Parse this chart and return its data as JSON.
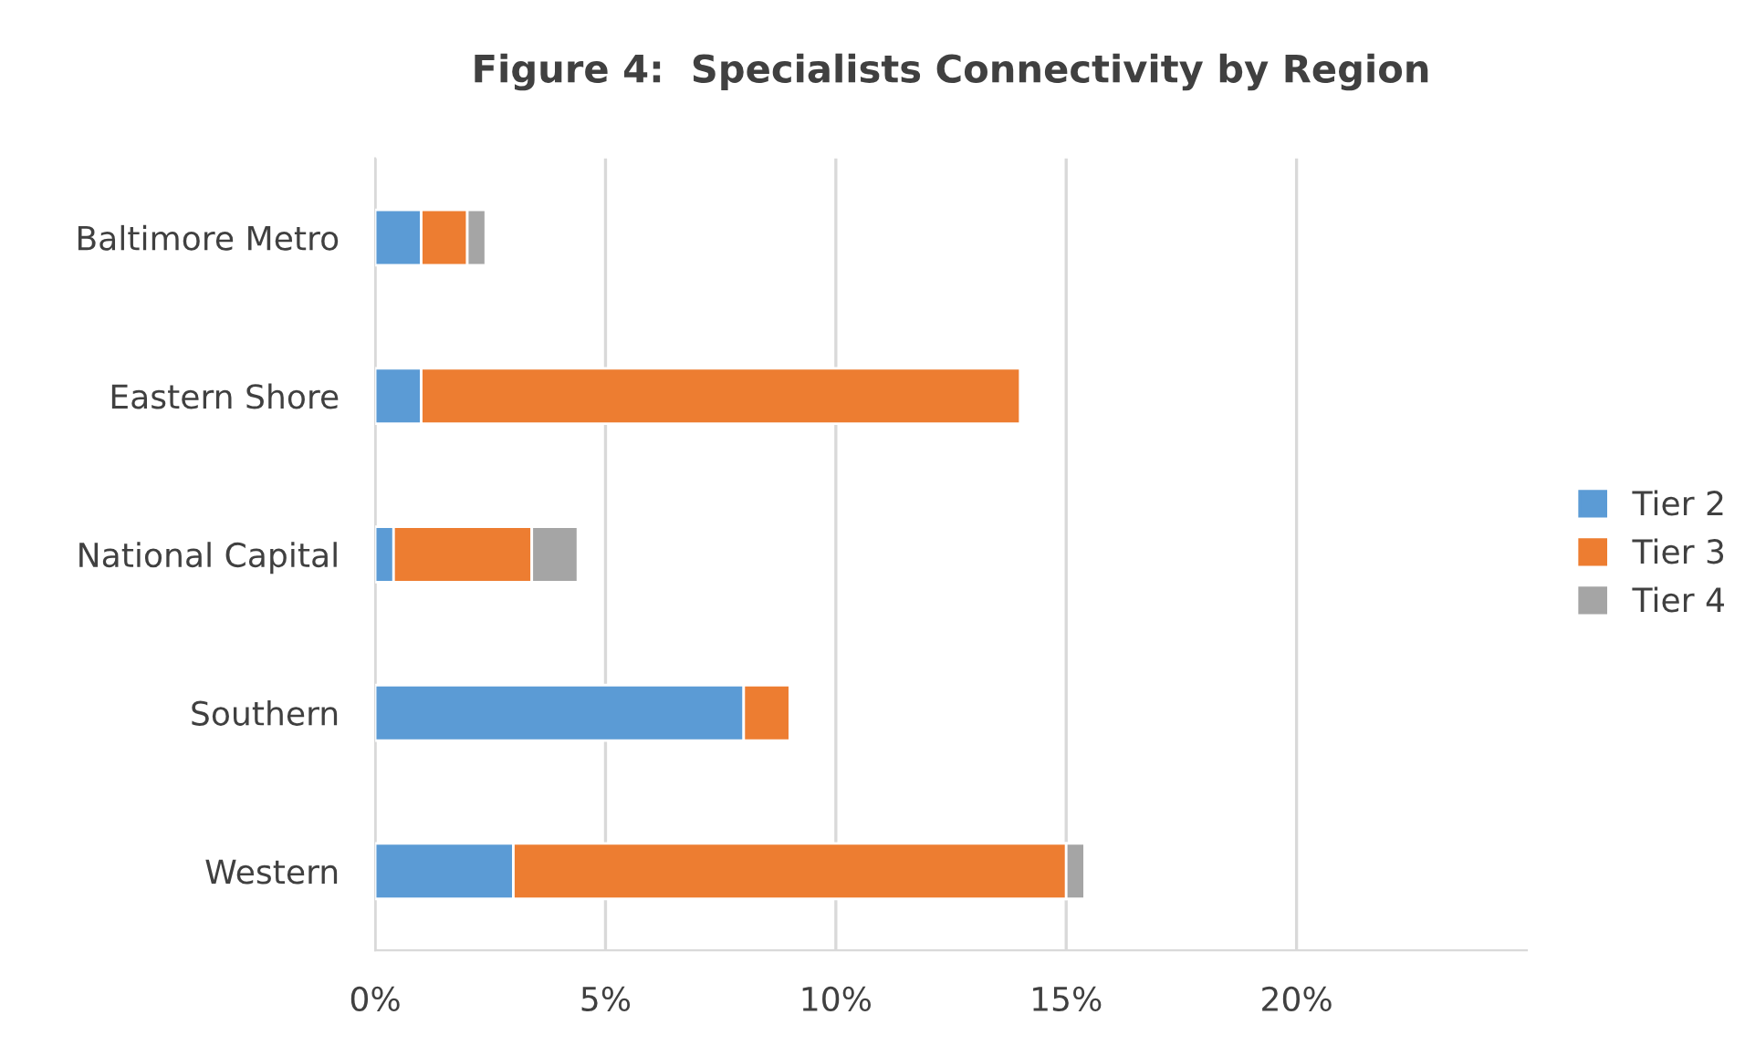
{
  "chart_data": {
    "type": "bar",
    "orientation": "horizontal",
    "stacked": true,
    "title": "Figure 4:  Specialists Connectivity by Region",
    "categories": [
      "Baltimore Metro",
      "Eastern Shore",
      "National Capital",
      "Southern",
      "Western"
    ],
    "series": [
      {
        "name": "Tier 2",
        "color": "#5b9bd5",
        "values": [
          1.0,
          1.0,
          0.4,
          8.0,
          3.0
        ]
      },
      {
        "name": "Tier 3",
        "color": "#ed7d31",
        "values": [
          1.0,
          13.0,
          3.0,
          1.0,
          12.0
        ]
      },
      {
        "name": "Tier 4",
        "color": "#a5a5a5",
        "values": [
          0.4,
          null,
          1.0,
          null,
          0.4
        ]
      }
    ],
    "xlim": [
      0,
      25
    ],
    "xticks": [
      {
        "value": 0,
        "label": "0%"
      },
      {
        "value": 5,
        "label": "5%"
      },
      {
        "value": 10,
        "label": "10%"
      },
      {
        "value": 15,
        "label": "15%"
      },
      {
        "value": 20,
        "label": "20%"
      }
    ],
    "grid": "x",
    "legend": "right"
  }
}
